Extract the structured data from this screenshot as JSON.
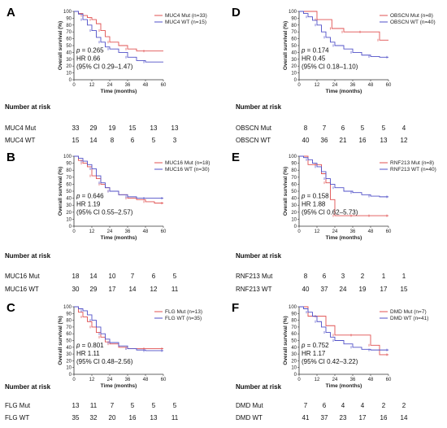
{
  "colors": {
    "mut": "#e05050",
    "wt": "#5050c8",
    "axis": "#333333"
  },
  "chart_data": [
    {
      "type": "line",
      "panel": "A",
      "xlabel": "Time (months)",
      "ylabel": "Overall survival (%)",
      "xlim": [
        0,
        60
      ],
      "ylim": [
        0,
        100
      ],
      "xticks": [
        "0",
        "12",
        "24",
        "36",
        "48",
        "60"
      ],
      "yticks": [
        "0",
        "10",
        "20",
        "30",
        "40",
        "50",
        "60",
        "70",
        "80",
        "90",
        "100"
      ],
      "series": [
        {
          "name": "MUC4 Mut (n=33)",
          "group": "mut",
          "x": [
            0,
            3,
            6,
            9,
            12,
            15,
            18,
            21,
            24,
            30,
            36,
            42,
            48,
            60
          ],
          "y": [
            100,
            97,
            94,
            91,
            88,
            82,
            72,
            63,
            55,
            50,
            45,
            42,
            42,
            42
          ]
        },
        {
          "name": "MUC4 WT (n=15)",
          "group": "wt",
          "x": [
            0,
            3,
            6,
            9,
            12,
            15,
            18,
            21,
            24,
            30,
            36,
            42,
            48,
            60
          ],
          "y": [
            100,
            96,
            88,
            80,
            72,
            62,
            55,
            48,
            45,
            40,
            33,
            28,
            26,
            26
          ]
        }
      ],
      "stats": {
        "p": "0.265",
        "hr": "HR 0.66",
        "ci": "(95% CI 0.29–1.47)"
      },
      "risk": {
        "title": "Number at risk",
        "rows": [
          {
            "label": "MUC4 Mut",
            "values": [
              "33",
              "29",
              "19",
              "15",
              "13",
              "13"
            ]
          },
          {
            "label": "MUC4 WT",
            "values": [
              "15",
              "14",
              "8",
              "6",
              "5",
              "3"
            ]
          }
        ]
      }
    },
    {
      "type": "line",
      "panel": "B",
      "xlabel": "Time (months)",
      "ylabel": "Overall survival (%)",
      "xlim": [
        0,
        60
      ],
      "ylim": [
        0,
        100
      ],
      "xticks": [
        "0",
        "12",
        "24",
        "36",
        "48",
        "60"
      ],
      "yticks": [
        "0",
        "10",
        "20",
        "30",
        "40",
        "50",
        "60",
        "70",
        "80",
        "90",
        "100"
      ],
      "series": [
        {
          "name": "MUC16 Mut (n=18)",
          "group": "mut",
          "x": [
            0,
            3,
            6,
            9,
            12,
            15,
            18,
            21,
            24,
            30,
            36,
            42,
            48,
            54,
            60
          ],
          "y": [
            100,
            94,
            90,
            85,
            72,
            68,
            60,
            55,
            50,
            45,
            40,
            38,
            35,
            33,
            33
          ]
        },
        {
          "name": "MUC16 WT (n=30)",
          "group": "wt",
          "x": [
            0,
            3,
            6,
            9,
            12,
            15,
            18,
            21,
            24,
            30,
            36,
            42,
            48,
            54,
            60
          ],
          "y": [
            100,
            97,
            93,
            88,
            82,
            72,
            62,
            55,
            50,
            45,
            42,
            40,
            40,
            40,
            40
          ]
        }
      ],
      "stats": {
        "p": "0.646",
        "hr": "HR 1.19",
        "ci": "(95% CI 0.55–2.57)"
      },
      "risk": {
        "title": "Number at risk",
        "rows": [
          {
            "label": "MUC16 Mut",
            "values": [
              "18",
              "14",
              "10",
              "7",
              "6",
              "5"
            ]
          },
          {
            "label": "MUC16 WT",
            "values": [
              "30",
              "29",
              "17",
              "14",
              "12",
              "11"
            ]
          }
        ]
      }
    },
    {
      "type": "line",
      "panel": "C",
      "xlabel": "Time (months)",
      "ylabel": "Overall survival (%)",
      "xlim": [
        0,
        60
      ],
      "ylim": [
        0,
        100
      ],
      "xticks": [
        "0",
        "12",
        "24",
        "36",
        "48",
        "60"
      ],
      "yticks": [
        "0",
        "10",
        "20",
        "30",
        "40",
        "50",
        "60",
        "70",
        "80",
        "90",
        "100"
      ],
      "series": [
        {
          "name": "FLG Mut (n=13)",
          "group": "mut",
          "x": [
            0,
            3,
            6,
            9,
            12,
            15,
            18,
            21,
            24,
            30,
            36,
            42,
            48,
            54,
            60
          ],
          "y": [
            100,
            92,
            85,
            78,
            70,
            62,
            55,
            48,
            45,
            40,
            38,
            38,
            38,
            38,
            38
          ]
        },
        {
          "name": "FLG WT (n=35)",
          "group": "wt",
          "x": [
            0,
            3,
            6,
            9,
            12,
            15,
            18,
            21,
            24,
            30,
            36,
            42,
            48,
            54,
            60
          ],
          "y": [
            100,
            97,
            94,
            88,
            80,
            70,
            60,
            52,
            47,
            42,
            38,
            36,
            35,
            35,
            35
          ]
        }
      ],
      "stats": {
        "p": "0.801",
        "hr": "HR 1.11",
        "ci": "(95% CI 0.48–2.56)"
      },
      "risk": {
        "title": "Number at risk",
        "rows": [
          {
            "label": "FLG Mut",
            "values": [
              "13",
              "11",
              "7",
              "5",
              "5",
              "5"
            ]
          },
          {
            "label": "FLG WT",
            "values": [
              "35",
              "32",
              "20",
              "16",
              "13",
              "11"
            ]
          }
        ]
      }
    },
    {
      "type": "line",
      "panel": "D",
      "xlabel": "Time (months)",
      "ylabel": "Overall survival (%)",
      "xlim": [
        0,
        60
      ],
      "ylim": [
        0,
        100
      ],
      "xticks": [
        "0",
        "12",
        "24",
        "36",
        "48",
        "60"
      ],
      "yticks": [
        "0",
        "10",
        "20",
        "30",
        "40",
        "50",
        "60",
        "70",
        "80",
        "90",
        "100"
      ],
      "series": [
        {
          "name": "OBSCN Mut (n=8)",
          "group": "mut",
          "x": [
            0,
            6,
            12,
            18,
            22,
            24,
            30,
            36,
            42,
            48,
            54,
            60
          ],
          "y": [
            100,
            100,
            88,
            88,
            75,
            75,
            70,
            70,
            70,
            70,
            58,
            58
          ]
        },
        {
          "name": "OBSCN WT (n=40)",
          "group": "wt",
          "x": [
            0,
            3,
            6,
            9,
            12,
            15,
            18,
            21,
            24,
            30,
            36,
            42,
            48,
            54,
            60
          ],
          "y": [
            100,
            97,
            92,
            87,
            80,
            70,
            62,
            55,
            50,
            45,
            40,
            36,
            34,
            33,
            33
          ]
        }
      ],
      "stats": {
        "p": "0.174",
        "hr": "HR 0.45",
        "ci": "(95% CI 0.18–1.10)"
      },
      "risk": {
        "title": "Number at risk",
        "rows": [
          {
            "label": "OBSCN Mut",
            "values": [
              "8",
              "7",
              "6",
              "5",
              "5",
              "4"
            ]
          },
          {
            "label": "OBSCN WT",
            "values": [
              "40",
              "36",
              "21",
              "16",
              "13",
              "12"
            ]
          }
        ]
      }
    },
    {
      "type": "line",
      "panel": "E",
      "xlabel": "Time (months)",
      "ylabel": "Overall survival (%)",
      "xlim": [
        0,
        60
      ],
      "ylim": [
        0,
        100
      ],
      "xticks": [
        "0",
        "12",
        "24",
        "36",
        "48",
        "60"
      ],
      "yticks": [
        "0",
        "10",
        "20",
        "30",
        "40",
        "50",
        "60",
        "70",
        "80",
        "90",
        "100"
      ],
      "series": [
        {
          "name": "RNF213 Mut (n=8)",
          "group": "mut",
          "x": [
            0,
            6,
            12,
            15,
            18,
            21,
            24,
            30,
            36,
            42,
            48,
            54,
            60
          ],
          "y": [
            100,
            88,
            88,
            75,
            62,
            38,
            15,
            15,
            15,
            15,
            15,
            15,
            15
          ]
        },
        {
          "name": "RNF213 WT (n=40)",
          "group": "wt",
          "x": [
            0,
            3,
            6,
            9,
            12,
            15,
            18,
            21,
            24,
            30,
            36,
            42,
            48,
            54,
            60
          ],
          "y": [
            100,
            98,
            95,
            90,
            85,
            78,
            68,
            60,
            55,
            50,
            48,
            45,
            43,
            42,
            42
          ]
        }
      ],
      "stats": {
        "p": "0.158",
        "hr": "HR 1.88",
        "ci": "(95% CI 0.62–5.73)"
      },
      "risk": {
        "title": "Number at risk",
        "rows": [
          {
            "label": "RNF213 Mut",
            "values": [
              "8",
              "6",
              "3",
              "2",
              "1",
              "1"
            ]
          },
          {
            "label": "RNF213 WT",
            "values": [
              "40",
              "37",
              "24",
              "19",
              "17",
              "15"
            ]
          }
        ]
      }
    },
    {
      "type": "line",
      "panel": "F",
      "xlabel": "Time (months)",
      "ylabel": "Overall survival (%)",
      "xlim": [
        0,
        60
      ],
      "ylim": [
        0,
        100
      ],
      "xticks": [
        "0",
        "12",
        "24",
        "36",
        "48",
        "60"
      ],
      "yticks": [
        "0",
        "10",
        "20",
        "30",
        "40",
        "50",
        "60",
        "70",
        "80",
        "90",
        "100"
      ],
      "series": [
        {
          "name": "DMD Mut (n=7)",
          "group": "mut",
          "x": [
            0,
            6,
            12,
            18,
            24,
            30,
            36,
            42,
            48,
            54,
            60
          ],
          "y": [
            100,
            86,
            86,
            72,
            58,
            58,
            58,
            58,
            43,
            29,
            29
          ]
        },
        {
          "name": "DMD WT (n=41)",
          "group": "wt",
          "x": [
            0,
            3,
            6,
            9,
            12,
            15,
            18,
            21,
            24,
            30,
            36,
            42,
            48,
            54,
            60
          ],
          "y": [
            100,
            97,
            92,
            86,
            78,
            70,
            62,
            55,
            50,
            45,
            40,
            37,
            36,
            36,
            36
          ]
        }
      ],
      "stats": {
        "p": "0.752",
        "hr": "HR 1.17",
        "ci": "(95% CI 0.42–3.22)"
      },
      "risk": {
        "title": "Number at risk",
        "rows": [
          {
            "label": "DMD Mut",
            "values": [
              "7",
              "6",
              "4",
              "4",
              "2",
              "2"
            ]
          },
          {
            "label": "DMD WT",
            "values": [
              "41",
              "37",
              "23",
              "17",
              "16",
              "14"
            ]
          }
        ]
      }
    }
  ]
}
